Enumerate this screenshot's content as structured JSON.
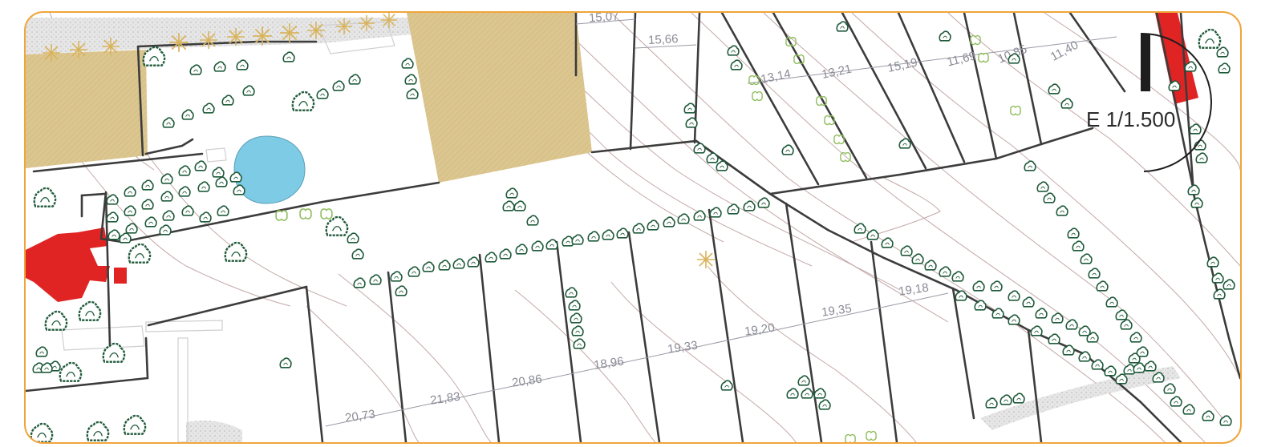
{
  "scale_label": "E 1/1.500",
  "upper_plot_widths": [
    "15,07",
    "15,66",
    "13,14",
    "13,21",
    "15,19",
    "11,69",
    "10,85",
    "11,40"
  ],
  "lower_plot_widths": [
    "20,73",
    "21,83",
    "20,86",
    "18,96",
    "19,33",
    "19,20",
    "19,35",
    "19,18"
  ],
  "colors": {
    "frame_border": "#f0a53a",
    "plot_line": "#3c3c3c",
    "contour_line": "#c4a8a8",
    "sand_area": "#dcc690",
    "pond": "#7ecbe5",
    "building": "#e02424",
    "tree_outline": "#1f5a3a",
    "shrub": "#8ebd5c",
    "palm": "#d9b35a",
    "dimension_text": "#8a8a96"
  },
  "icons": [
    "north-arrow-icon",
    "tree-icon",
    "palm-icon",
    "shrub-icon"
  ]
}
